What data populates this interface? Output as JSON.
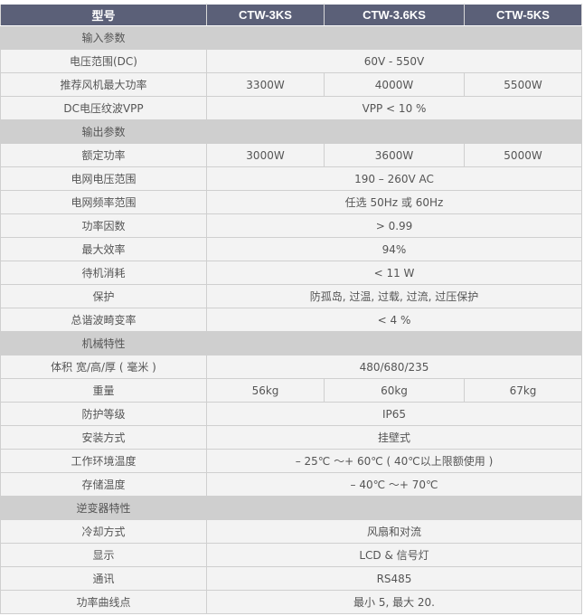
{
  "header": {
    "label": "型号",
    "models": [
      "CTW-3KS",
      "CTW-3.6KS",
      "CTW-5KS"
    ]
  },
  "rows": [
    {
      "section": "输入参数"
    },
    {
      "label": "电压范围(DC)",
      "values": [
        "60V - 550V"
      ]
    },
    {
      "label": "推荐风机最大功率",
      "values": [
        "3300W",
        "4000W",
        "5500W"
      ]
    },
    {
      "label": "DC电压纹波VPP",
      "values": [
        "VPP < 10 %"
      ]
    },
    {
      "section": "输出参数"
    },
    {
      "label": "额定功率",
      "values": [
        "3000W",
        "3600W",
        "5000W"
      ]
    },
    {
      "label": "电网电压范围",
      "values": [
        "190 – 260V AC"
      ]
    },
    {
      "label": "电网频率范围",
      "values": [
        "任选 50Hz 或 60Hz"
      ]
    },
    {
      "label": "功率因数",
      "values": [
        "> 0.99"
      ]
    },
    {
      "label": "最大效率",
      "values": [
        "94%"
      ]
    },
    {
      "label": "待机消耗",
      "values": [
        "< 11 W"
      ]
    },
    {
      "label": "保护",
      "values": [
        "防孤岛, 过温, 过载, 过流, 过压保护"
      ]
    },
    {
      "label": "总谐波畸变率",
      "values": [
        "< 4 %"
      ]
    },
    {
      "section": "机械特性"
    },
    {
      "label": "体积 宽/高/厚 ( 毫米 )",
      "values": [
        "480/680/235"
      ]
    },
    {
      "label": "重量",
      "values": [
        "56kg",
        "60kg",
        "67kg"
      ]
    },
    {
      "label": "防护等级",
      "values": [
        "IP65"
      ]
    },
    {
      "label": "安装方式",
      "values": [
        "挂壁式"
      ]
    },
    {
      "label": "工作环境温度",
      "values": [
        "– 25℃ ～+ 60℃ ( 40℃以上限额使用 )"
      ]
    },
    {
      "label": "存储温度",
      "values": [
        "– 40℃ ～+ 70℃"
      ]
    },
    {
      "section": "逆变器特性"
    },
    {
      "label": "冷却方式",
      "values": [
        "风扇和对流"
      ]
    },
    {
      "label": "显示",
      "values": [
        "LCD & 信号灯"
      ]
    },
    {
      "label": "通讯",
      "values": [
        "RS485"
      ]
    },
    {
      "label": "功率曲线点",
      "values": [
        "最小 5, 最大 20."
      ]
    }
  ]
}
